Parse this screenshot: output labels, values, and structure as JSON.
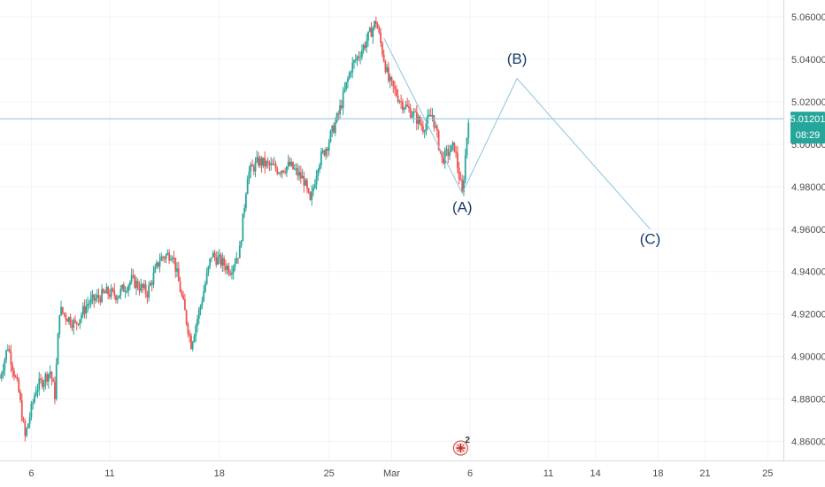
{
  "chart_data": {
    "type": "candlestick",
    "ylim": [
      4.851,
      5.068
    ],
    "y_ticks": [
      "5.06000",
      "5.04000",
      "5.02000",
      "5.00000",
      "4.98000",
      "4.96000",
      "4.94000",
      "4.92000",
      "4.90000",
      "4.88000",
      "4.86000"
    ],
    "x_ticks": [
      {
        "label": "6",
        "day": 6
      },
      {
        "label": "11",
        "day": 11
      },
      {
        "label": "18",
        "day": 18
      },
      {
        "label": "25",
        "day": 25
      },
      {
        "label": "Mar",
        "day": 29
      },
      {
        "label": "6",
        "day": 34
      },
      {
        "label": "11",
        "day": 39
      },
      {
        "label": "14",
        "day": 42
      },
      {
        "label": "18",
        "day": 46
      },
      {
        "label": "21",
        "day": 49
      },
      {
        "label": "25",
        "day": 53
      }
    ],
    "xlim": [
      4.0,
      54.0
    ],
    "up_color": "#26a69a",
    "down_color": "#ef5350",
    "wave_color": "#8ec3de",
    "last_price": {
      "value": 5.01201,
      "label": "5.01201",
      "countdown": "08:29",
      "color": "#26a69a"
    },
    "price_path": [
      [
        4.0,
        4.89
      ],
      [
        4.5,
        4.905
      ],
      [
        5.2,
        4.883
      ],
      [
        5.6,
        4.862
      ],
      [
        6.3,
        4.885
      ],
      [
        7.2,
        4.893
      ],
      [
        7.5,
        4.882
      ],
      [
        7.8,
        4.922
      ],
      [
        8.8,
        4.915
      ],
      [
        9.6,
        4.925
      ],
      [
        10.8,
        4.93
      ],
      [
        11.5,
        4.929
      ],
      [
        12.4,
        4.936
      ],
      [
        13.4,
        4.93
      ],
      [
        14.2,
        4.946
      ],
      [
        15.0,
        4.949
      ],
      [
        15.6,
        4.928
      ],
      [
        16.2,
        4.906
      ],
      [
        16.8,
        4.924
      ],
      [
        17.5,
        4.948
      ],
      [
        18.7,
        4.941
      ],
      [
        19.3,
        4.95
      ],
      [
        19.8,
        4.986
      ],
      [
        20.5,
        4.992
      ],
      [
        21.8,
        4.988
      ],
      [
        22.5,
        4.99
      ],
      [
        23.4,
        4.983
      ],
      [
        23.8,
        4.972
      ],
      [
        24.3,
        4.991
      ],
      [
        24.9,
        5.0
      ],
      [
        25.6,
        5.014
      ],
      [
        26.4,
        5.036
      ],
      [
        27.2,
        5.046
      ],
      [
        28.0,
        5.058
      ],
      [
        28.8,
        5.03
      ],
      [
        29.6,
        5.02
      ],
      [
        30.4,
        5.014
      ],
      [
        31.0,
        5.008
      ],
      [
        31.6,
        5.014
      ],
      [
        32.2,
        4.993
      ],
      [
        33.0,
        4.999
      ],
      [
        33.5,
        4.976
      ],
      [
        33.9,
        5.013
      ]
    ],
    "wave_lines": [
      {
        "points": [
          [
            28.5,
            5.05
          ],
          [
            33.5,
            4.977
          ],
          [
            37.0,
            5.031
          ],
          [
            45.5,
            4.96
          ]
        ]
      }
    ],
    "wave_labels": [
      {
        "text": "(A)",
        "day": 33.5,
        "price": 4.968
      },
      {
        "text": "(B)",
        "day": 37.0,
        "price": 5.038
      },
      {
        "text": "(C)",
        "day": 45.5,
        "price": 4.953
      }
    ],
    "badge": {
      "text": "2",
      "icon": "uk-flag-icon",
      "day": 33.4
    }
  }
}
